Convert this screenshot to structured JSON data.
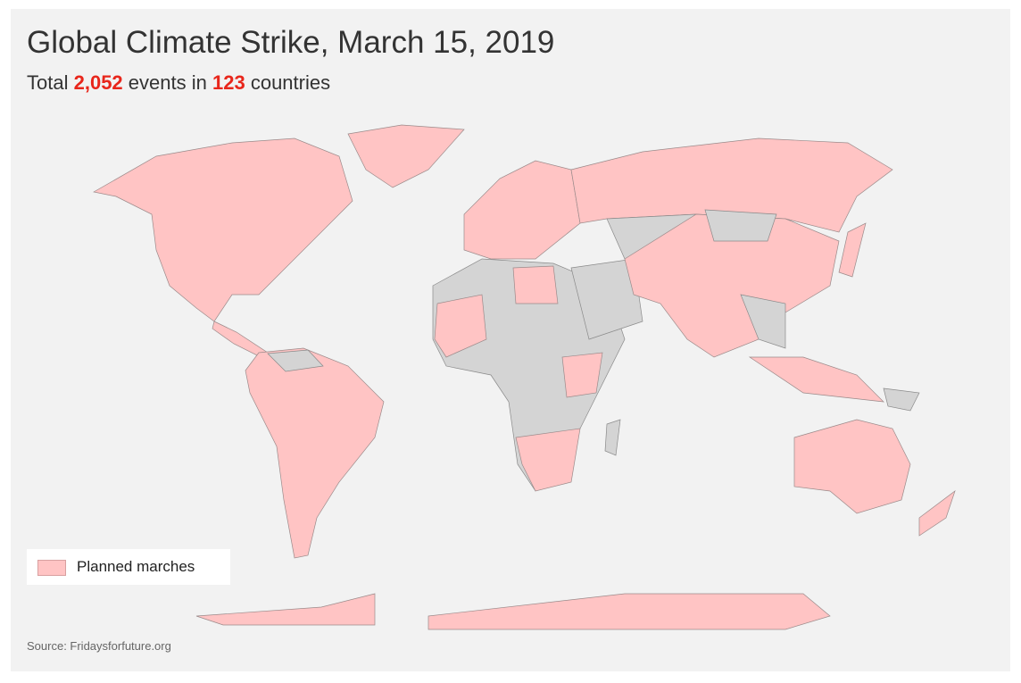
{
  "header": {
    "title": "Global Climate Strike, March 15, 2019",
    "subtitle": {
      "prefix": "Total",
      "events": "2,052",
      "middle": "events in",
      "countries": "123",
      "suffix": "countries"
    }
  },
  "legend": {
    "label": "Planned marches"
  },
  "source": "Source: Fridaysforfuture.org"
}
